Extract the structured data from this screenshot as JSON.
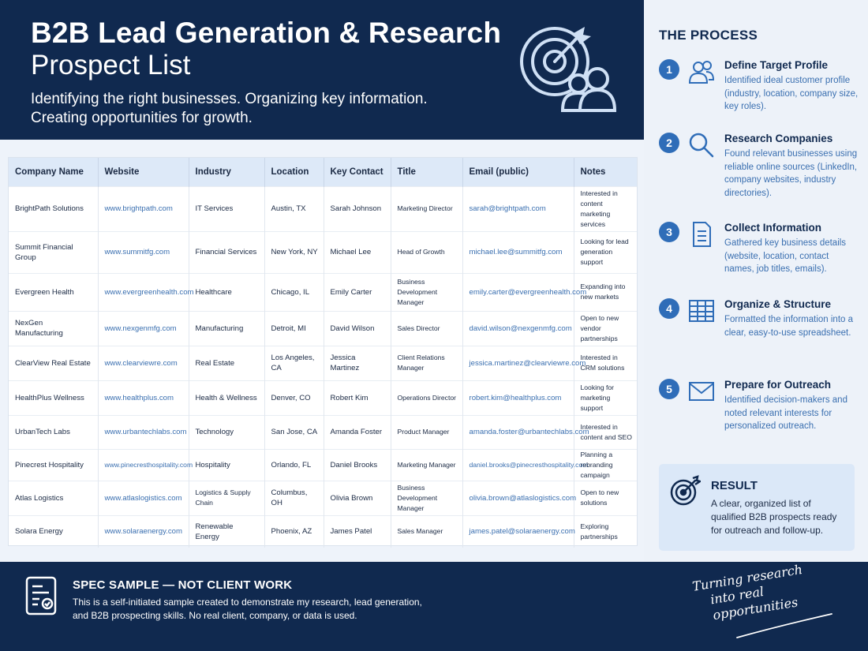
{
  "header": {
    "title": "B2B Lead Generation & Research",
    "subtitle": "Prospect List",
    "tagline_line1": "Identifying the right businesses. Organizing key information.",
    "tagline_line2": "Creating opportunities for growth.",
    "icon": "target-people-icon"
  },
  "table": {
    "columns": [
      "Company Name",
      "Website",
      "Industry",
      "Location",
      "Key Contact",
      "Title",
      "Email (public)",
      "Notes"
    ],
    "rows": [
      {
        "company": "BrightPath Solutions",
        "website": "www.brightpath.com",
        "industry": "IT Services",
        "location": "Austin, TX",
        "contact": "Sarah Johnson",
        "title": "Marketing Director",
        "email": "sarah@brightpath.com",
        "notes": "Interested in content marketing services"
      },
      {
        "company": "Summit Financial Group",
        "website": "www.summitfg.com",
        "industry": "Financial Services",
        "location": "New York, NY",
        "contact": "Michael Lee",
        "title": "Head of Growth",
        "email": "michael.lee@summitfg.com",
        "notes": "Looking for lead generation support"
      },
      {
        "company": "Evergreen Health",
        "website": "www.evergreenhealth.com",
        "industry": "Healthcare",
        "location": "Chicago, IL",
        "contact": "Emily Carter",
        "title": "Business Development Manager",
        "email": "emily.carter@evergreenhealth.com",
        "notes": "Expanding into new markets"
      },
      {
        "company": "NexGen Manufacturing",
        "website": "www.nexgenmfg.com",
        "industry": "Manufacturing",
        "location": "Detroit, MI",
        "contact": "David Wilson",
        "title": "Sales Director",
        "email": "david.wilson@nexgenmfg.com",
        "notes": "Open to new vendor partnerships"
      },
      {
        "company": "ClearView Real Estate",
        "website": "www.clearviewre.com",
        "industry": "Real Estate",
        "location": "Los Angeles, CA",
        "contact": "Jessica Martinez",
        "title": "Client Relations Manager",
        "email": "jessica.martinez@clearviewre.com",
        "notes": "Interested in CRM solutions"
      },
      {
        "company": "HealthPlus Wellness",
        "website": "www.healthplus.com",
        "industry": "Health & Wellness",
        "location": "Denver, CO",
        "contact": "Robert Kim",
        "title": "Operations Director",
        "email": "robert.kim@healthplus.com",
        "notes": "Looking for marketing support"
      },
      {
        "company": "UrbanTech Labs",
        "website": "www.urbantechlabs.com",
        "industry": "Technology",
        "location": "San Jose, CA",
        "contact": "Amanda Foster",
        "title": "Product Manager",
        "email": "amanda.foster@urbantechlabs.com",
        "notes": "Interested in content and SEO"
      },
      {
        "company": "Pinecrest Hospitality",
        "website": "www.pinecresthospitality.com",
        "industry": "Hospitality",
        "location": "Orlando, FL",
        "contact": "Daniel Brooks",
        "title": "Marketing Manager",
        "email": "daniel.brooks@pinecresthospitality.com",
        "notes": "Planning a rebranding campaign"
      },
      {
        "company": "Atlas Logistics",
        "website": "www.atlaslogistics.com",
        "industry": "Logistics & Supply Chain",
        "location": "Columbus, OH",
        "contact": "Olivia Brown",
        "title": "Business Development Manager",
        "email": "olivia.brown@atlaslogistics.com",
        "notes": "Open to new solutions"
      },
      {
        "company": "Solara Energy",
        "website": "www.solaraenergy.com",
        "industry": "Renewable Energy",
        "location": "Phoenix, AZ",
        "contact": "James Patel",
        "title": "Sales Manager",
        "email": "james.patel@solaraenergy.com",
        "notes": "Exploring partnerships"
      }
    ]
  },
  "process": {
    "title": "THE PROCESS",
    "steps": [
      {
        "num": "1",
        "title": "Define Target Profile",
        "desc": "Identified ideal customer profile (industry, location, company size, key roles).",
        "icon": "users-icon"
      },
      {
        "num": "2",
        "title": "Research Companies",
        "desc": "Found relevant businesses using reliable online sources (LinkedIn, company websites, industry directories).",
        "icon": "search-icon"
      },
      {
        "num": "3",
        "title": "Collect Information",
        "desc": "Gathered key business details (website, location, contact names, job titles, emails).",
        "icon": "document-icon"
      },
      {
        "num": "4",
        "title": "Organize & Structure",
        "desc": "Formatted the information into a clear, easy-to-use spreadsheet.",
        "icon": "table-icon"
      },
      {
        "num": "5",
        "title": "Prepare for Outreach",
        "desc": "Identified decision-makers and noted relevant interests for personalized outreach.",
        "icon": "envelope-icon"
      }
    ],
    "result": {
      "title": "RESULT",
      "desc": "A clear, organized list of qualified B2B prospects ready for outreach and follow-up.",
      "icon": "target-icon"
    }
  },
  "footer": {
    "title": "SPEC SAMPLE — NOT CLIENT WORK",
    "desc": "This is a self-initiated sample created to demonstrate my research, lead generation, and B2B prospecting skills. No real client, company, or data is used.",
    "slogan_line1": "Turning research",
    "slogan_line2": "into real opportunities",
    "icon": "document-checklist-icon"
  },
  "colors": {
    "navy": "#10294f",
    "accent_blue": "#2f6db8",
    "link_blue": "#3a6fb0",
    "header_row": "#dde9f8",
    "result_bg": "#dbe8f8"
  }
}
